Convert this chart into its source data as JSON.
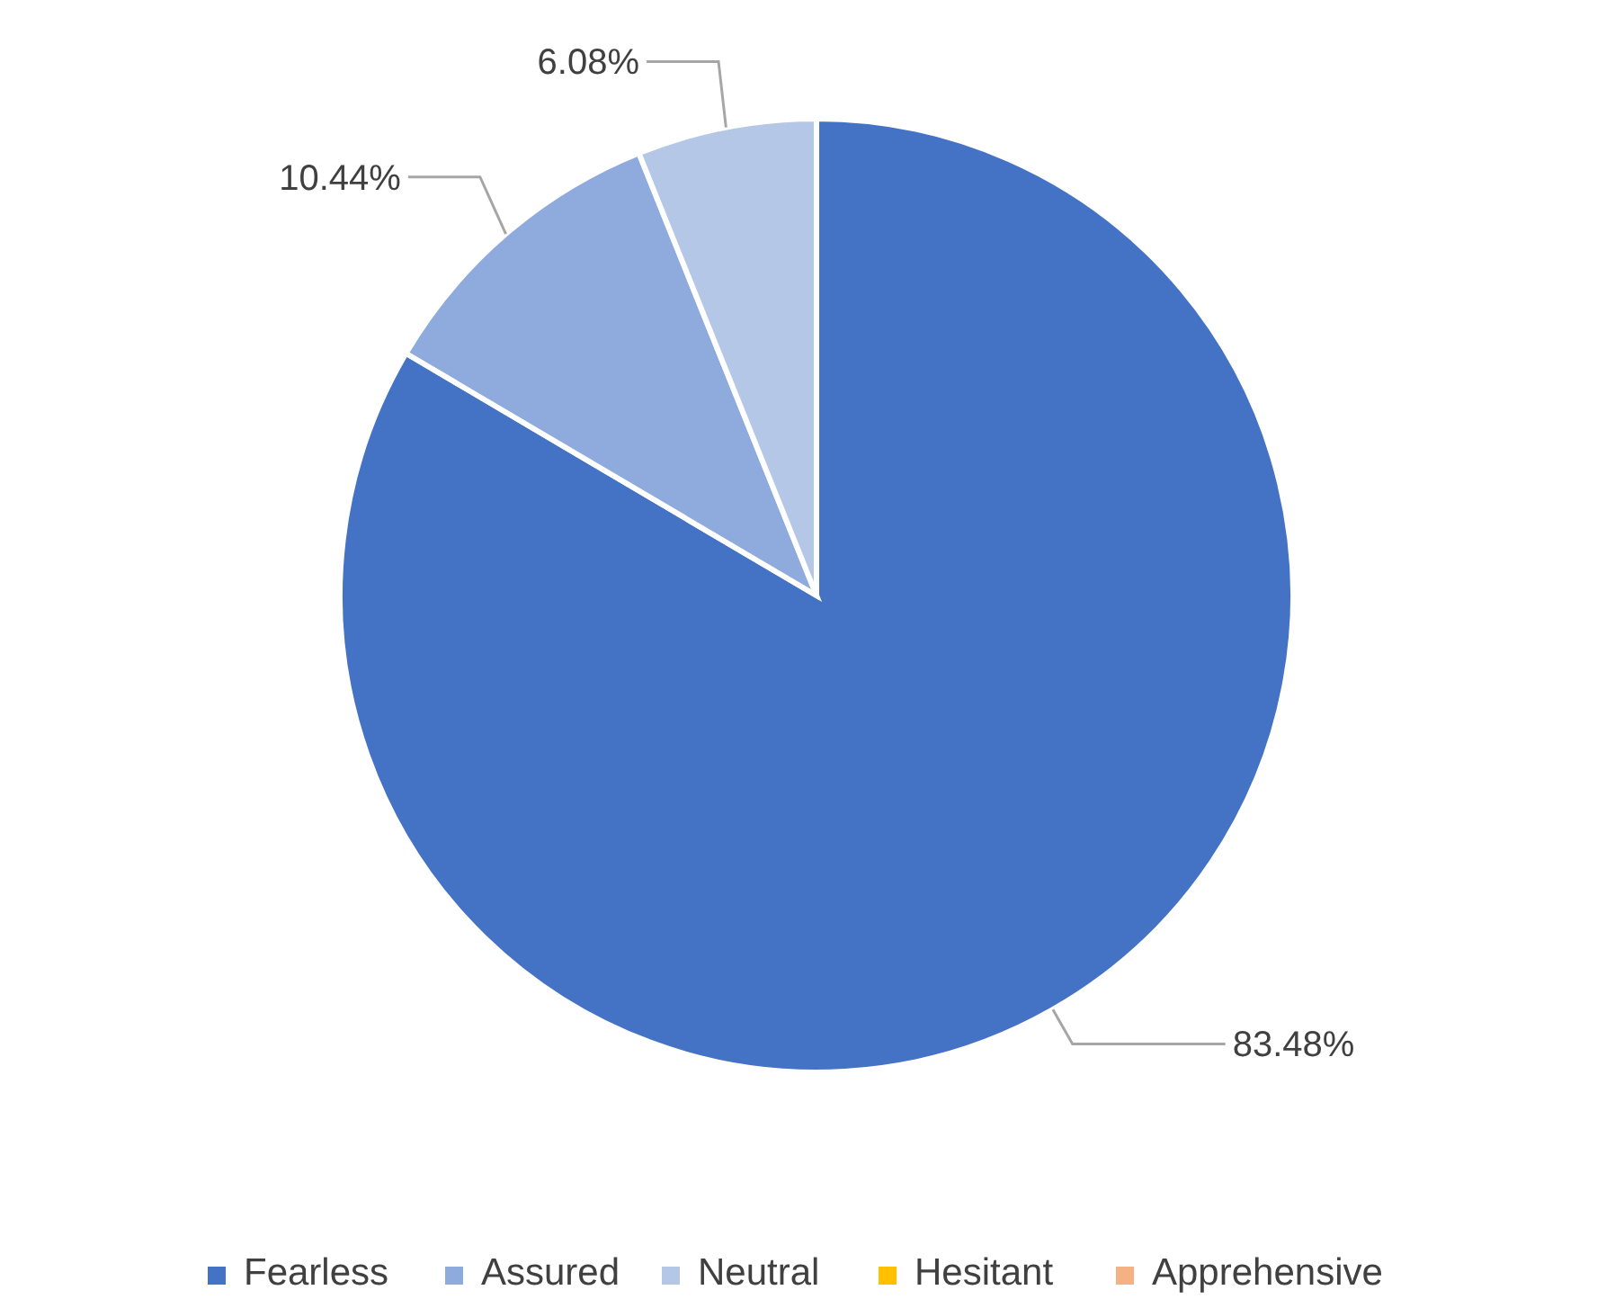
{
  "chart_data": {
    "type": "pie",
    "categories": [
      "Fearless",
      "Assured",
      "Neutral",
      "Hesitant",
      "Apprehensive"
    ],
    "values": [
      83.48,
      10.44,
      6.08,
      0,
      0
    ],
    "colors": [
      "#4472c4",
      "#8faadc",
      "#b4c7e7",
      "#ffc000",
      "#f4b183"
    ],
    "value_labels": [
      "83.48%",
      "10.44%",
      "6.08%",
      null,
      null
    ],
    "legend": "bottom"
  }
}
